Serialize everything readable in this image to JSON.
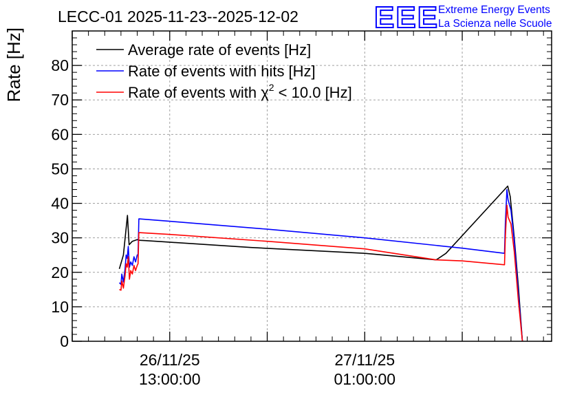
{
  "chart_data": {
    "type": "line",
    "title": "LECC-01 2025-11-23--2025-12-02",
    "ylabel": "Rate [Hz]",
    "xlabel": "",
    "ylim": [
      0,
      90
    ],
    "y_ticks": [
      0,
      10,
      20,
      30,
      40,
      50,
      60,
      70,
      80
    ],
    "x_range_hours": [
      -6,
      23.5
    ],
    "x_ticks": [
      {
        "hour": 0,
        "date": "26/11/25",
        "time": "13:00:00"
      },
      {
        "hour": 12,
        "date": "27/11/25",
        "time": "01:00:00"
      }
    ],
    "grid": true,
    "legend_position": "top-left",
    "series": [
      {
        "name": "Average rate of events [Hz]",
        "color": "#000000",
        "points": [
          [
            -3.1,
            21
          ],
          [
            -2.85,
            25
          ],
          [
            -2.6,
            36.5
          ],
          [
            -2.5,
            28
          ],
          [
            -2.3,
            29
          ],
          [
            -2.0,
            29.5
          ],
          [
            -1.9,
            29.3
          ],
          [
            -1.5,
            29.2
          ],
          [
            -0.5,
            28.9
          ],
          [
            5,
            27.2
          ],
          [
            12,
            25.5
          ],
          [
            16.4,
            23.6
          ],
          [
            17,
            25.5
          ],
          [
            20.8,
            45
          ],
          [
            20.95,
            42
          ],
          [
            21.2,
            30
          ],
          [
            21.45,
            16
          ],
          [
            21.7,
            0
          ]
        ]
      },
      {
        "name": "Rate of events with hits [Hz]",
        "color": "#0000ff",
        "points": [
          [
            -3.1,
            17
          ],
          [
            -3.0,
            16.5
          ],
          [
            -2.95,
            19.5
          ],
          [
            -2.85,
            17.2
          ],
          [
            -2.75,
            21
          ],
          [
            -2.68,
            25
          ],
          [
            -2.62,
            24
          ],
          [
            -2.55,
            27.5
          ],
          [
            -2.48,
            21.5
          ],
          [
            -2.4,
            23
          ],
          [
            -2.3,
            22
          ],
          [
            -2.2,
            24.5
          ],
          [
            -2.1,
            23
          ],
          [
            -2.0,
            25
          ],
          [
            -1.95,
            25.2
          ],
          [
            -1.9,
            35.5
          ],
          [
            0,
            34.8
          ],
          [
            6,
            32.5
          ],
          [
            12,
            30
          ],
          [
            18,
            27
          ],
          [
            20.6,
            25.5
          ],
          [
            20.65,
            34
          ],
          [
            20.75,
            44
          ],
          [
            20.82,
            41
          ],
          [
            21.0,
            38
          ],
          [
            21.2,
            29
          ],
          [
            21.45,
            14
          ],
          [
            21.7,
            0
          ]
        ]
      },
      {
        "name": "Rate of events with χ² < 10.0 [Hz]",
        "color": "#ff0000",
        "points": [
          [
            -3.1,
            15
          ],
          [
            -3.0,
            14.8
          ],
          [
            -2.95,
            17.5
          ],
          [
            -2.85,
            15.4
          ],
          [
            -2.75,
            19
          ],
          [
            -2.68,
            22.5
          ],
          [
            -2.62,
            21.5
          ],
          [
            -2.55,
            24.5
          ],
          [
            -2.48,
            18
          ],
          [
            -2.4,
            20.5
          ],
          [
            -2.3,
            19.5
          ],
          [
            -2.2,
            22
          ],
          [
            -2.1,
            20.5
          ],
          [
            -2.0,
            22
          ],
          [
            -1.95,
            22.5
          ],
          [
            -1.9,
            31.5
          ],
          [
            0,
            31
          ],
          [
            6,
            29
          ],
          [
            12,
            26.8
          ],
          [
            16.4,
            23.6
          ],
          [
            18,
            23.3
          ],
          [
            20.6,
            22.2
          ],
          [
            20.65,
            30
          ],
          [
            20.75,
            39.5
          ],
          [
            20.82,
            36
          ],
          [
            21.0,
            34
          ],
          [
            21.2,
            26
          ],
          [
            21.45,
            12
          ],
          [
            21.7,
            0
          ]
        ]
      }
    ],
    "legend_entries": {
      "average": "Average rate of events [Hz]",
      "hits": "Rate of events with hits [Hz]",
      "chi_prefix": "Rate of events with χ",
      "chi_sup": "2",
      "chi_suffix": " < 10.0 [Hz]"
    }
  },
  "branding": {
    "logo_text": "EEE",
    "line1": "Extreme Energy Events",
    "line2": "La Scienza nelle Scuole",
    "color": "#0000ff"
  }
}
